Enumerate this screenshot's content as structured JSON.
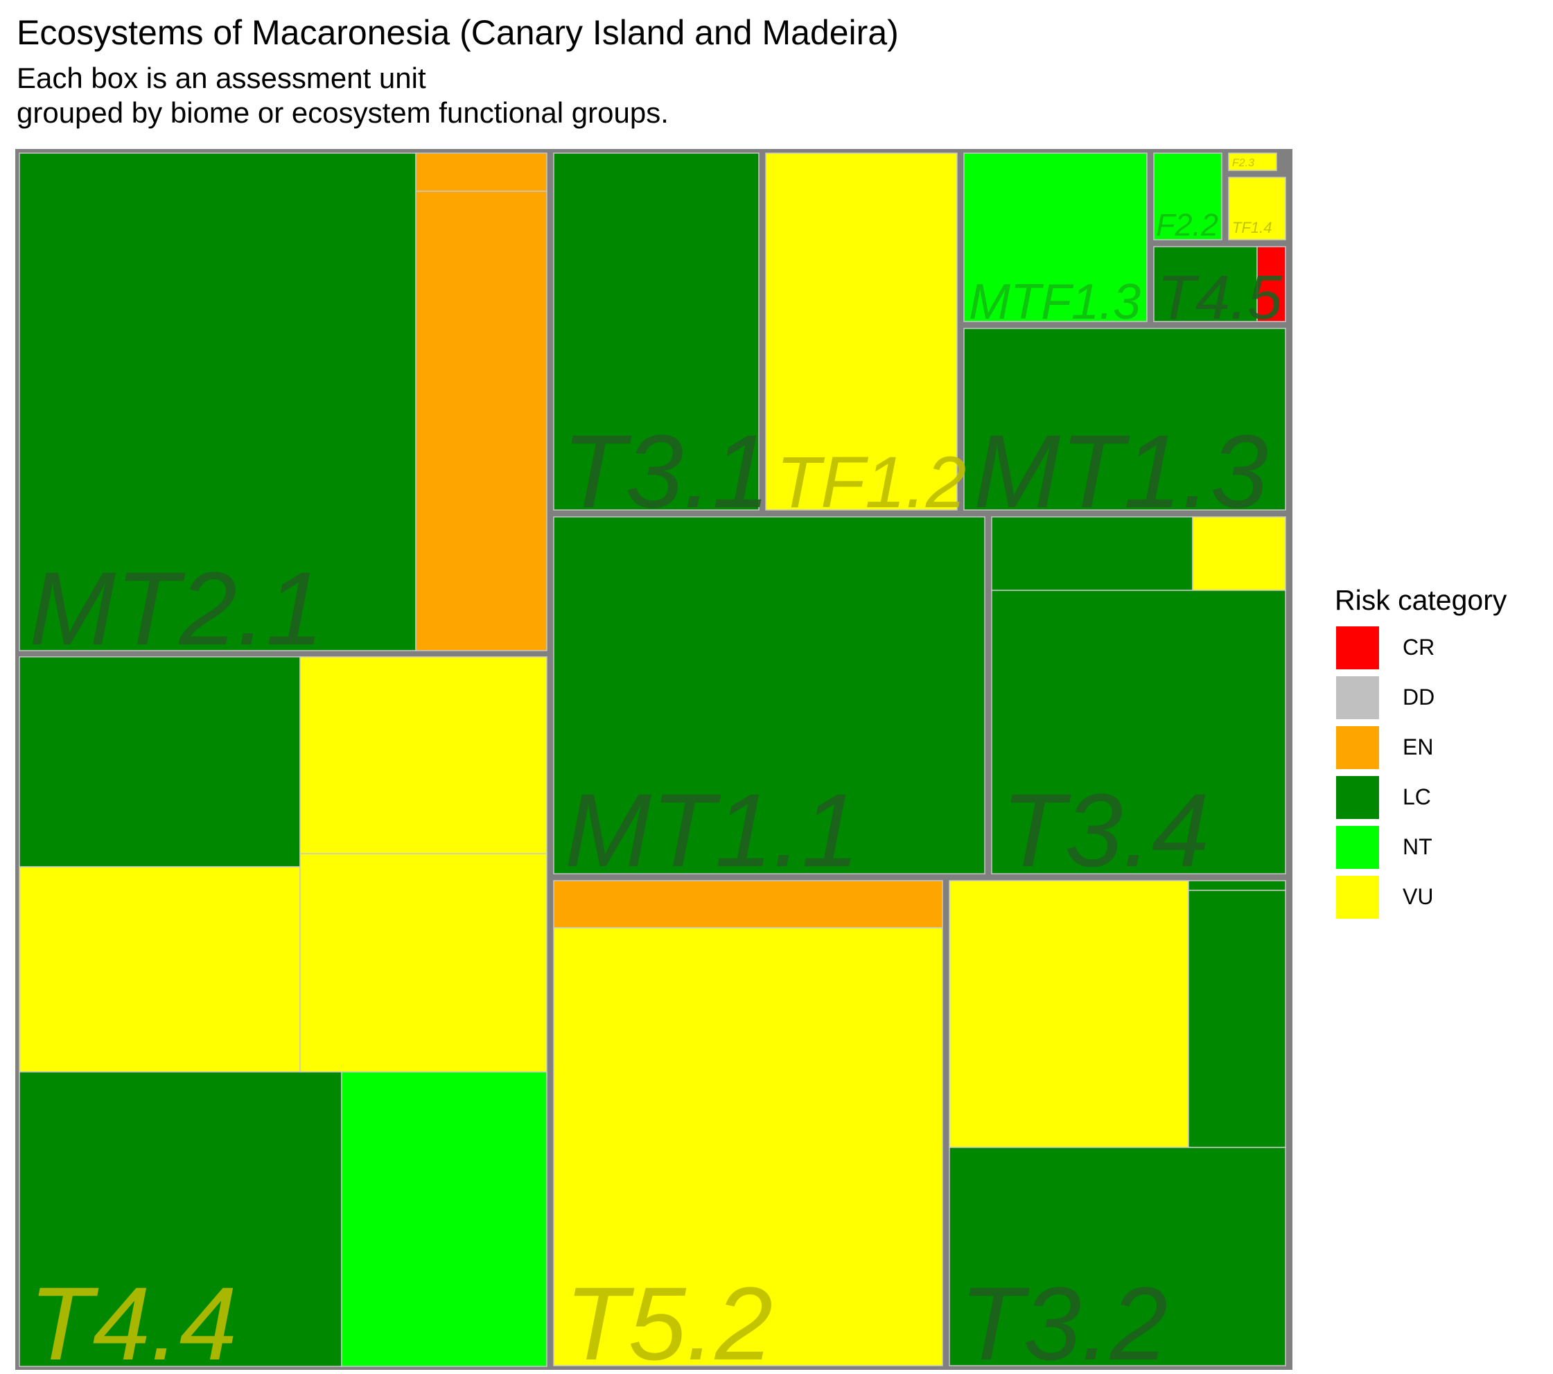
{
  "title": "Ecosystems of Macaronesia (Canary Island and Madeira)",
  "subtitle": [
    "Each box is an assessment unit",
    "grouped by biome or ecosystem functional groups."
  ],
  "legend": {
    "title": "Risk category",
    "items": [
      {
        "label": "CR",
        "color": "#FF0000"
      },
      {
        "label": "DD",
        "color": "#C0C0C0"
      },
      {
        "label": "EN",
        "color": "#FFA500"
      },
      {
        "label": "LC",
        "color": "#008800"
      },
      {
        "label": "NT",
        "color": "#00FF00"
      },
      {
        "label": "VU",
        "color": "#FFFF00"
      }
    ]
  },
  "chart_data": {
    "type": "treemap",
    "title": "Ecosystems of Macaronesia (Canary Island and Madeira)",
    "subtitle": "Each box is an assessment unit grouped by biome or ecosystem functional groups.",
    "groups": [
      {
        "name": "MT2.1",
        "units": [
          {
            "category": "LC",
            "size": 199536
          },
          {
            "category": "EN",
            "size": 5200
          },
          {
            "category": "EN",
            "size": 60320
          }
        ]
      },
      {
        "name": "T4.4",
        "units": [
          {
            "category": "LC",
            "size": 58630
          },
          {
            "category": "VU",
            "size": 49200
          },
          {
            "category": "VU",
            "size": 60060
          },
          {
            "category": "VU",
            "size": 55040
          },
          {
            "category": "LC",
            "size": 93165
          },
          {
            "category": "NT",
            "size": 58745
          }
        ]
      },
      {
        "name": "T5.2",
        "units": [
          {
            "category": "EN",
            "size": 18360
          },
          {
            "category": "VU",
            "size": 171020
          }
        ]
      },
      {
        "name": "MT1.1",
        "units": [
          {
            "category": "LC",
            "size": 153920
          }
        ]
      },
      {
        "name": "T3.4",
        "units": [
          {
            "category": "LC",
            "size": 14616
          },
          {
            "category": "VU",
            "size": 6552
          },
          {
            "category": "LC",
            "size": 83544
          }
        ]
      },
      {
        "name": "T3.2",
        "units": [
          {
            "category": "VU",
            "size": 63960
          },
          {
            "category": "LC",
            "size": 25662
          },
          {
            "category": "LC",
            "size": 732
          },
          {
            "category": "LC",
            "size": 71060
          }
        ]
      },
      {
        "name": "T3.1",
        "units": [
          {
            "category": "LC",
            "size": 71340
          }
        ]
      },
      {
        "name": "TF1.2",
        "units": [
          {
            "category": "VU",
            "size": 65940
          }
        ]
      },
      {
        "name": "MT1.3",
        "units": [
          {
            "category": "LC",
            "size": 58020
          }
        ]
      },
      {
        "name": "MTF1.3",
        "units": [
          {
            "category": "NT",
            "size": 31725
          }
        ]
      },
      {
        "name": "T4.5",
        "units": [
          {
            "category": "LC",
            "size": 12300
          },
          {
            "category": "CR",
            "size": 2400
          }
        ]
      },
      {
        "name": "F2.2",
        "units": [
          {
            "category": "NT",
            "size": 5494
          }
        ]
      },
      {
        "name": "F2.3",
        "units": [
          {
            "category": "VU",
            "size": 616
          }
        ]
      },
      {
        "name": "TF1.4",
        "units": [
          {
            "category": "VU",
            "size": 4350
          }
        ]
      }
    ]
  }
}
